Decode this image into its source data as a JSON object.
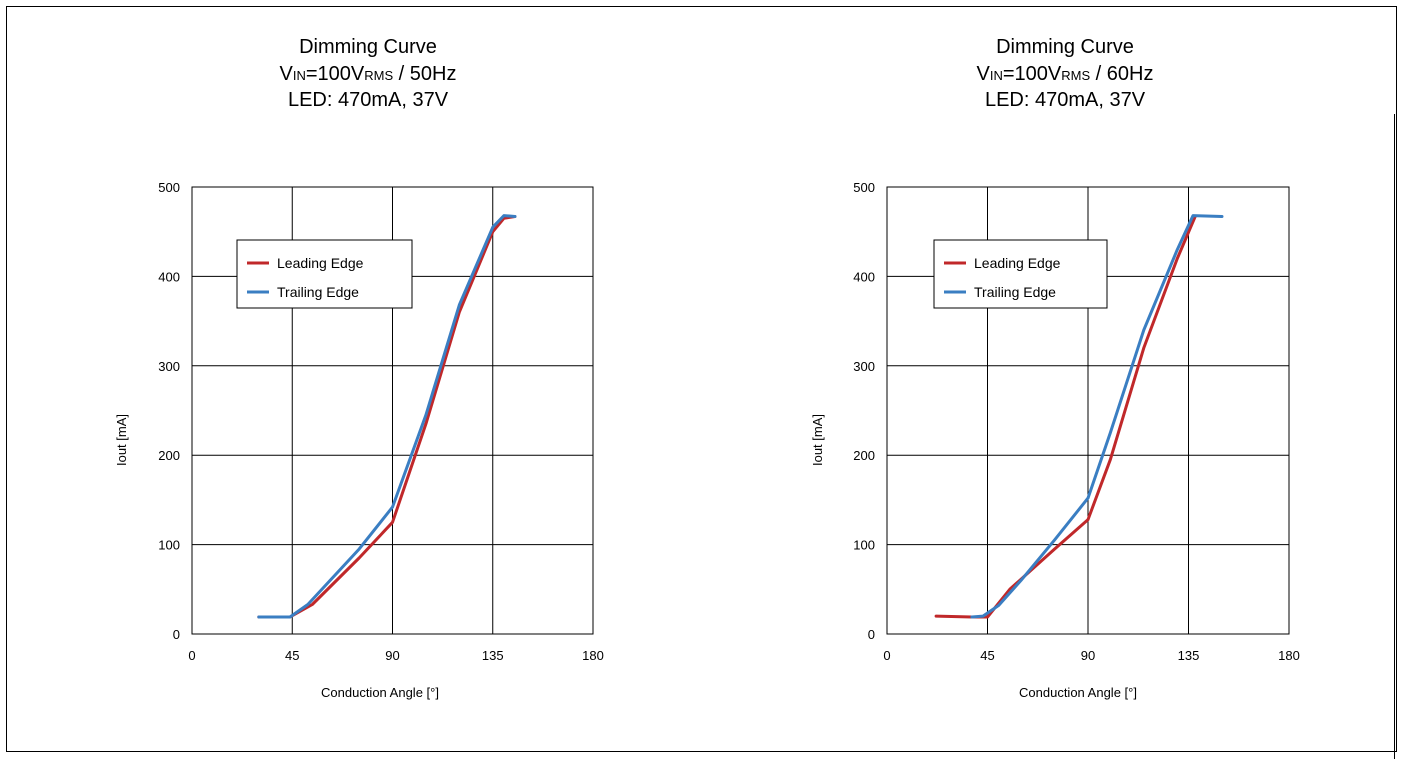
{
  "chart_data": [
    {
      "type": "line",
      "title_lines": [
        {
          "main": "Dimming Curve"
        },
        {
          "v": "V",
          "in": "IN",
          "eq": "=100V",
          "rms": "RMS",
          "tail": " / 50Hz"
        },
        {
          "main": "LED: 470mA, 37V"
        }
      ],
      "xlabel": "Conduction Angle  [°]",
      "ylabel": "Iout [mA]",
      "xlim": [
        0,
        180
      ],
      "ylim": [
        0,
        500
      ],
      "xticks": [
        "0",
        "45",
        "90",
        "135",
        "180"
      ],
      "yticks": [
        "0",
        "100",
        "200",
        "300",
        "400",
        "500"
      ],
      "grid": true,
      "legend_position": "upper-left",
      "series": [
        {
          "name": "Leading Edge",
          "color": "#c0282a",
          "x": [
            30,
            44,
            54,
            75,
            90,
            105,
            120,
            135,
            140,
            145
          ],
          "y": [
            19,
            19,
            33,
            85,
            125,
            235,
            360,
            450,
            465,
            467
          ]
        },
        {
          "name": "Trailing Edge",
          "color": "#3a7ec2",
          "x": [
            30,
            44,
            52,
            75,
            90,
            105,
            120,
            135,
            140,
            145
          ],
          "y": [
            19,
            19,
            33,
            95,
            142,
            245,
            368,
            455,
            468,
            467
          ]
        }
      ]
    },
    {
      "type": "line",
      "title_lines": [
        {
          "main": "Dimming Curve"
        },
        {
          "v": "V",
          "in": "IN",
          "eq": "=100V",
          "rms": "RMS",
          "tail": " / 60Hz"
        },
        {
          "main": "LED: 470mA, 37V"
        }
      ],
      "xlabel": "Conduction Angle  [°]",
      "ylabel": "Iout [mA]",
      "xlim": [
        0,
        180
      ],
      "ylim": [
        0,
        500
      ],
      "xticks": [
        "0",
        "45",
        "90",
        "135",
        "180"
      ],
      "yticks": [
        "0",
        "100",
        "200",
        "300",
        "400",
        "500"
      ],
      "grid": true,
      "legend_position": "upper-left",
      "series": [
        {
          "name": "Leading Edge",
          "color": "#c0282a",
          "x": [
            22,
            38,
            45,
            55,
            75,
            90,
            100,
            115,
            130,
            138
          ],
          "y": [
            20,
            19,
            19,
            50,
            95,
            128,
            195,
            320,
            420,
            467
          ]
        },
        {
          "name": "Trailing Edge",
          "color": "#3a7ec2",
          "x": [
            38,
            43,
            50,
            60,
            75,
            90,
            100,
            115,
            130,
            137,
            150
          ],
          "y": [
            19,
            20,
            32,
            60,
            105,
            152,
            225,
            340,
            430,
            468,
            467
          ]
        }
      ]
    }
  ]
}
